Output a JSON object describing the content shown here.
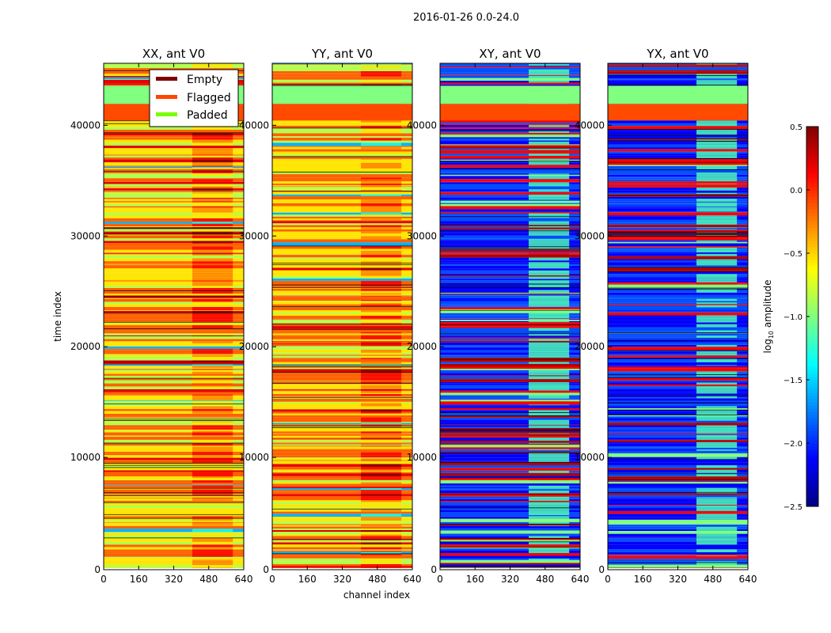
{
  "chart_data": {
    "type": "heatmap",
    "title": "2016-01-26 0.0-24.0",
    "xlabel": "channel index",
    "ylabel": "time index",
    "xlim": [
      0,
      640
    ],
    "ylim": [
      0,
      45600
    ],
    "xticks": [
      "0",
      "160",
      "320",
      "480",
      "640"
    ],
    "yticks": [
      "0",
      "10000",
      "20000",
      "30000",
      "40000"
    ],
    "panels": [
      {
        "title": "XX, ant V0",
        "mode": "auto"
      },
      {
        "title": "YY, ant V0",
        "mode": "auto"
      },
      {
        "title": "XY, ant V0",
        "mode": "cross"
      },
      {
        "title": "YX, ant V0",
        "mode": "cross"
      }
    ],
    "bands": [
      {
        "label": "Padded",
        "from": 41930,
        "to": 43570
      },
      {
        "label": "Flagged",
        "from": 40430,
        "to": 41930
      }
    ],
    "legend": {
      "placement": "upper-left of first panel",
      "entries": [
        {
          "label": "Empty",
          "color": "#800000"
        },
        {
          "label": "Flagged",
          "color": "#ff4500"
        },
        {
          "label": "Padded",
          "color": "#7cfc00"
        }
      ]
    },
    "colorbar": {
      "label": "log10 amplitude",
      "label_main": "log",
      "label_sub": "10",
      "label_rest": " amplitude",
      "colormap": "jet",
      "range": [
        -2.5,
        0.5
      ],
      "ticks": [
        "0.5",
        "0.0",
        "−0.5",
        "−1.0",
        "−1.5",
        "−2.0",
        "−2.5"
      ]
    }
  }
}
